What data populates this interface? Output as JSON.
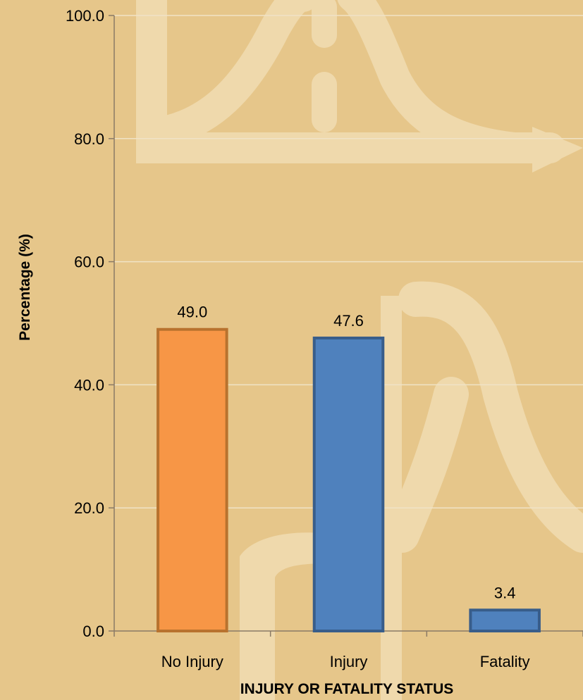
{
  "colors": {
    "background": "#e6c68a",
    "watermark": "#efd9ac",
    "gridline": "#f0e3c6",
    "axis": "#8a7a66"
  },
  "chart_data": {
    "type": "bar",
    "title": "",
    "xlabel": "INJURY OR FATALITY STATUS",
    "ylabel": "Percentage (%)",
    "ylim": [
      0,
      100
    ],
    "yticks": [
      "0.0",
      "20.0",
      "40.0",
      "60.0",
      "80.0",
      "100.0"
    ],
    "grid": true,
    "legend": "none",
    "categories": [
      "No Injury",
      "Injury",
      "Fatality"
    ],
    "values": [
      49.0,
      47.6,
      3.4
    ],
    "value_labels": [
      "49.0",
      "47.6",
      "3.4"
    ],
    "bar_colors": [
      {
        "fill": "#f79646",
        "stroke": "#b8722e"
      },
      {
        "fill": "#4f81bd",
        "stroke": "#385d8a"
      },
      {
        "fill": "#4f81bd",
        "stroke": "#385d8a"
      }
    ]
  }
}
